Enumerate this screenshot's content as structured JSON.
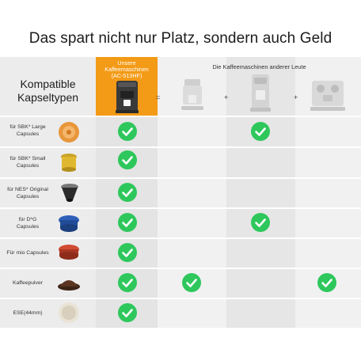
{
  "title": "Das spart nicht nur Platz, sondern auch Geld",
  "header": {
    "ours_label": "Unsere\nKaffeemaschinen\n(AC-513HF)",
    "others_label": "Die Kaffeemaschinen anderer Leute",
    "left_label": "Kompatible\nKapseltypen",
    "operators": [
      "=",
      "+",
      "+"
    ]
  },
  "colors": {
    "accent": "#f39a16",
    "check": "#2ec75c"
  },
  "rows": [
    {
      "label": "für SBK* Large\nCapsules",
      "checks": [
        true,
        false,
        true,
        false
      ]
    },
    {
      "label": "für SBK* Small\nCapsules",
      "checks": [
        true,
        false,
        false,
        false
      ]
    },
    {
      "label": "für NES* Original\nCapsules",
      "checks": [
        true,
        false,
        false,
        false
      ]
    },
    {
      "label": "für D*G\nCapsules",
      "checks": [
        true,
        false,
        true,
        false
      ]
    },
    {
      "label": "Für mio Capsules",
      "checks": [
        true,
        false,
        false,
        false
      ]
    },
    {
      "label": "Kaffeepulver",
      "checks": [
        true,
        true,
        false,
        true
      ]
    },
    {
      "label": "ESE(44mm)",
      "checks": [
        true,
        false,
        false,
        false
      ]
    }
  ]
}
